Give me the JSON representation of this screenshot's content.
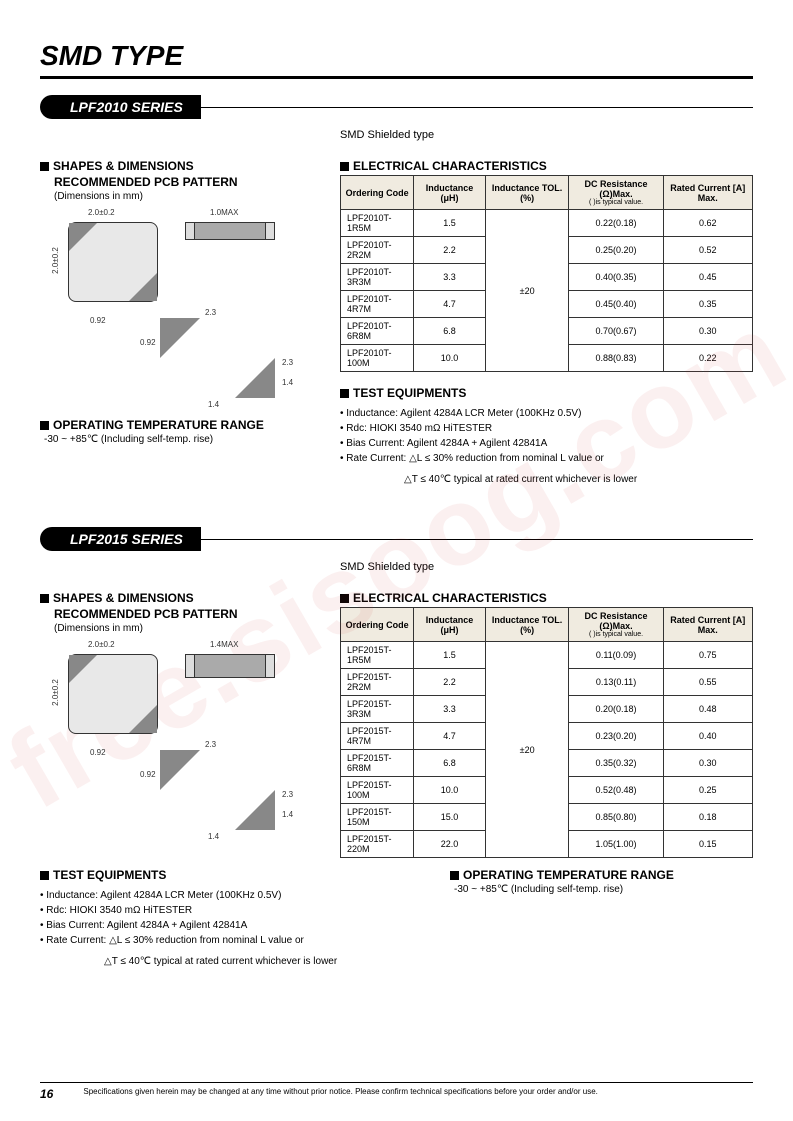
{
  "watermark": "free.sisoog.com",
  "main_title": "SMD TYPE",
  "series": [
    {
      "name": "LPF2010 SERIES",
      "subtitle": "SMD Shielded type",
      "shapes_title": "SHAPES & DIMENSIONS",
      "shapes_sub": "RECOMMENDED PCB PATTERN",
      "shapes_note": "(Dimensions in mm)",
      "dims": {
        "top_w": "2.0±0.2",
        "top_h": "2.0±0.2",
        "side_h": "1.0MAX",
        "pad_a": "0.92",
        "pad_b": "0.92",
        "pad_w": "2.3",
        "pad_h": "2.3",
        "pad_c": "1.4",
        "pad_d": "1.4"
      },
      "elec_title": "ELECTRICAL CHARACTERISTICS",
      "columns": [
        "Ordering Code",
        "Inductance (μH)",
        "Inductance TOL.(%)",
        "DC Resistance (Ω)Max.",
        "Rated Current [A] Max."
      ],
      "col_sub": [
        "",
        "",
        "",
        "( )is typical value.",
        ""
      ],
      "tol": "±20",
      "rows": [
        {
          "code": "LPF2010T-1R5M",
          "ind": "1.5",
          "dcr": "0.22(0.18)",
          "cur": "0.62"
        },
        {
          "code": "LPF2010T-2R2M",
          "ind": "2.2",
          "dcr": "0.25(0.20)",
          "cur": "0.52"
        },
        {
          "code": "LPF2010T-3R3M",
          "ind": "3.3",
          "dcr": "0.40(0.35)",
          "cur": "0.45"
        },
        {
          "code": "LPF2010T-4R7M",
          "ind": "4.7",
          "dcr": "0.45(0.40)",
          "cur": "0.35"
        },
        {
          "code": "LPF2010T-6R8M",
          "ind": "6.8",
          "dcr": "0.70(0.67)",
          "cur": "0.30"
        },
        {
          "code": "LPF2010T-100M",
          "ind": "10.0",
          "dcr": "0.88(0.83)",
          "cur": "0.22"
        }
      ],
      "test_title": "TEST EQUIPMENTS",
      "test_lines": [
        "Inductance: Agilent 4284A LCR Meter (100KHz 0.5V)",
        "Rdc: HIOKI 3540 mΩ HiTESTER",
        "Bias Current: Agilent 4284A + Agilent 42841A",
        "Rate Current: △L ≤  30% reduction from nominal L value or"
      ],
      "test_indent": "△T ≤  40℃ typical at rated current whichever is lower",
      "temp_title": "OPERATING TEMPERATURE RANGE",
      "temp_text": "-30 ~ +85℃ (Including self-temp. rise)"
    },
    {
      "name": "LPF2015 SERIES",
      "subtitle": "SMD Shielded type",
      "shapes_title": "SHAPES & DIMENSIONS",
      "shapes_sub": "RECOMMENDED PCB PATTERN",
      "shapes_note": "(Dimensions in mm)",
      "dims": {
        "top_w": "2.0±0.2",
        "top_h": "2.0±0.2",
        "side_h": "1.4MAX",
        "pad_a": "0.92",
        "pad_b": "0.92",
        "pad_w": "2.3",
        "pad_h": "2.3",
        "pad_c": "1.4",
        "pad_d": "1.4"
      },
      "elec_title": "ELECTRICAL CHARACTERISTICS",
      "columns": [
        "Ordering Code",
        "Inductance (μH)",
        "Inductance TOL.(%)",
        "DC Resistance (Ω)Max.",
        "Rated Current [A] Max."
      ],
      "col_sub": [
        "",
        "",
        "",
        "( )is typical value.",
        ""
      ],
      "tol": "±20",
      "rows": [
        {
          "code": "LPF2015T-1R5M",
          "ind": "1.5",
          "dcr": "0.11(0.09)",
          "cur": "0.75"
        },
        {
          "code": "LPF2015T-2R2M",
          "ind": "2.2",
          "dcr": "0.13(0.11)",
          "cur": "0.55"
        },
        {
          "code": "LPF2015T-3R3M",
          "ind": "3.3",
          "dcr": "0.20(0.18)",
          "cur": "0.48"
        },
        {
          "code": "LPF2015T-4R7M",
          "ind": "4.7",
          "dcr": "0.23(0.20)",
          "cur": "0.40"
        },
        {
          "code": "LPF2015T-6R8M",
          "ind": "6.8",
          "dcr": "0.35(0.32)",
          "cur": "0.30"
        },
        {
          "code": "LPF2015T-100M",
          "ind": "10.0",
          "dcr": "0.52(0.48)",
          "cur": "0.25"
        },
        {
          "code": "LPF2015T-150M",
          "ind": "15.0",
          "dcr": "0.85(0.80)",
          "cur": "0.18"
        },
        {
          "code": "LPF2015T-220M",
          "ind": "22.0",
          "dcr": "1.05(1.00)",
          "cur": "0.15"
        }
      ],
      "test_title": "TEST EQUIPMENTS",
      "test_lines": [
        "Inductance: Agilent 4284A LCR Meter (100KHz 0.5V)",
        "Rdc: HIOKI 3540 mΩ HiTESTER",
        "Bias Current: Agilent 4284A + Agilent 42841A",
        "Rate Current: △L ≤ 30% reduction from nominal L value or"
      ],
      "test_indent": "△T ≤  40℃ typical at rated current whichever is lower",
      "temp_title": "OPERATING TEMPERATURE RANGE",
      "temp_text": "-30 ~ +85℃ (Including self-temp. rise)"
    }
  ],
  "footer": {
    "page": "16",
    "disclaimer": "Specifications given herein may be changed at any time without prior notice. Please confirm technical specifications before your order and/or use."
  }
}
